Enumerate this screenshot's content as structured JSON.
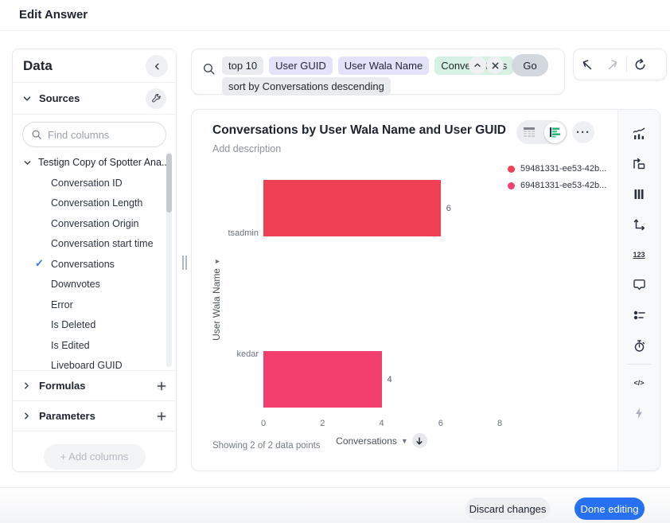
{
  "page": {
    "title": "Edit Answer"
  },
  "data_panel": {
    "title": "Data",
    "sources_label": "Sources",
    "find_columns_placeholder": "Find columns",
    "source_name": "Testign Copy of Spotter Ana...",
    "columns": [
      {
        "label": "Conversation ID",
        "selected": false
      },
      {
        "label": "Conversation Length",
        "selected": false
      },
      {
        "label": "Conversation Origin",
        "selected": false
      },
      {
        "label": "Conversation start time",
        "selected": false
      },
      {
        "label": "Conversations",
        "selected": true
      },
      {
        "label": "Downvotes",
        "selected": false
      },
      {
        "label": "Error",
        "selected": false
      },
      {
        "label": "Is Deleted",
        "selected": false
      },
      {
        "label": "Is Edited",
        "selected": false
      },
      {
        "label": "Liveboard GUID",
        "selected": false
      }
    ],
    "formulas_label": "Formulas",
    "parameters_label": "Parameters",
    "add_columns_label": "+ Add columns"
  },
  "search_bar": {
    "tokens": [
      {
        "text": "top 10",
        "type": "keyword",
        "row": 1
      },
      {
        "text": "User GUID",
        "type": "attribute",
        "row": 1
      },
      {
        "text": "User Wala Name",
        "type": "attribute",
        "row": 1
      },
      {
        "text": "Conversations",
        "type": "measure",
        "row": 1
      },
      {
        "text": "sort by Conversations descending",
        "type": "keyword",
        "row": 2
      }
    ],
    "go_label": "Go"
  },
  "answer": {
    "title": "Conversations by User Wala Name and User GUID",
    "description_placeholder": "Add description",
    "status": "Showing 2 of 2 data points"
  },
  "toolbar_icons": [
    "chart-config",
    "pin-to-liveboard",
    "columns",
    "axes",
    "number-format",
    "tooltip",
    "legend-style",
    "timer",
    "code",
    "spotiq"
  ],
  "chart_data": {
    "type": "bar",
    "orientation": "horizontal",
    "title": "Conversations by User Wala Name and User GUID",
    "categories": [
      "tsadmin",
      "kedar"
    ],
    "series": [
      {
        "name": "59481331-ee53-42b...",
        "color": "#ef4153",
        "values": [
          6,
          null
        ]
      },
      {
        "name": "69481331-ee53-42b...",
        "color": "#f23f6e",
        "values": [
          null,
          4
        ]
      }
    ],
    "xlabel": "Conversations",
    "ylabel": "User Wala Name",
    "xticks": [
      0,
      2,
      4,
      6,
      8
    ],
    "xlim": [
      0,
      9
    ],
    "data_labels": true,
    "legend_position": "top-right",
    "grid": false,
    "sort": "descending"
  },
  "footer": {
    "discard_label": "Discard changes",
    "done_label": "Done editing"
  },
  "colors": {
    "accent_blue": "#2770ef",
    "series_red": "#ef4153",
    "series_pink": "#f23f6e",
    "token_attribute_bg": "#e4e2fb",
    "token_measure_bg": "#d7f2e2",
    "token_keyword_bg": "#e9ebee",
    "check_blue": "#2e72f2"
  }
}
